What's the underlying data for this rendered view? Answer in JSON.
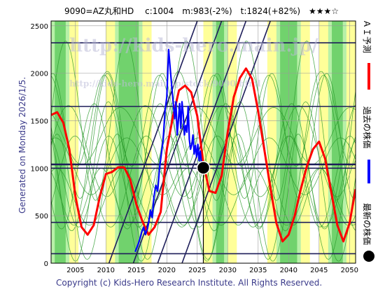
{
  "chart_data": {
    "type": "line",
    "title": "9090=AZ丸和HD　 c:1004　m:983(-2%)　t:1824(+82%)　★★★☆",
    "side_label": "Generated on Monday 2026/1/5.",
    "copyright": "Copyright (c) Kids-Hero Research Institute. All Rights Reserved.",
    "watermark": "http://kids-hero.main.jp/",
    "watermark2": "http://kids-hero.main.jp/stock/9090.html",
    "xlim": [
      2001,
      2051
    ],
    "ylim": [
      0,
      2550
    ],
    "x_ticks": [
      2005,
      2010,
      2015,
      2020,
      2025,
      2030,
      2035,
      2040,
      2045,
      2050
    ],
    "y_ticks": [
      0,
      500,
      1000,
      1500,
      2000,
      2500
    ],
    "horizontal_levels": [
      100,
      430,
      1000,
      1040,
      1650,
      2320
    ],
    "grid": true,
    "legend": {
      "ai_forecast": "ＡＩ予測",
      "past_price": "過去の株価",
      "latest_price": "最新の株価"
    },
    "colors": {
      "forecast": "#ff0000",
      "price": "#0000ff",
      "green_band": "#5ac85a",
      "light_green": "#b8f0a8",
      "yellow_band": "#ffff99",
      "level_line": "#1e1e5a",
      "frame": "#000000"
    },
    "latest_point": {
      "x": 2026.0,
      "y": 1004
    },
    "forecast_series": {
      "name": "ＡＩ予測",
      "x": [
        2001,
        2002,
        2003,
        2004,
        2005,
        2006,
        2007,
        2008,
        2009,
        2010,
        2011,
        2012,
        2013,
        2014,
        2015,
        2016,
        2017,
        2018,
        2019,
        2020,
        2021,
        2022,
        2023,
        2024,
        2025,
        2026,
        2027,
        2028,
        2029,
        2030,
        2031,
        2032,
        2033,
        2034,
        2035,
        2036,
        2037,
        2038,
        2039,
        2040,
        2041,
        2042,
        2043,
        2044,
        2045,
        2046,
        2047,
        2048,
        2049,
        2050,
        2051
      ],
      "y": [
        1560,
        1590,
        1480,
        1200,
        700,
        380,
        300,
        400,
        700,
        940,
        960,
        1010,
        1010,
        880,
        620,
        440,
        300,
        380,
        540,
        1200,
        1540,
        1820,
        1870,
        1800,
        1550,
        1050,
        760,
        740,
        920,
        1380,
        1750,
        1950,
        2050,
        1940,
        1600,
        1200,
        800,
        420,
        230,
        300,
        500,
        780,
        1020,
        1200,
        1280,
        1100,
        750,
        400,
        230,
        420,
        780
      ]
    },
    "price_series": {
      "name": "過去の株価",
      "x": [
        2014.8,
        2015.0,
        2015.3,
        2015.6,
        2015.9,
        2016.2,
        2016.5,
        2016.8,
        2017.0,
        2017.3,
        2017.6,
        2017.9,
        2018.2,
        2018.5,
        2018.8,
        2019.1,
        2019.4,
        2019.7,
        2020.0,
        2020.3,
        2020.6,
        2020.9,
        2021.1,
        2021.3,
        2021.5,
        2021.7,
        2021.9,
        2022.1,
        2022.3,
        2022.5,
        2022.7,
        2022.9,
        2023.1,
        2023.3,
        2023.5,
        2023.7,
        2023.9,
        2024.1,
        2024.3,
        2024.5,
        2024.7,
        2024.9,
        2025.1,
        2025.3,
        2025.5,
        2025.7,
        2026.0
      ],
      "y": [
        120,
        150,
        200,
        260,
        330,
        380,
        300,
        360,
        420,
        560,
        480,
        700,
        820,
        760,
        1000,
        1150,
        1300,
        1600,
        1750,
        2250,
        2020,
        1800,
        1650,
        1520,
        1700,
        1350,
        1500,
        1680,
        1420,
        1700,
        1560,
        1350,
        1450,
        1380,
        1650,
        1300,
        1200,
        1250,
        1350,
        1150,
        1240,
        1120,
        1250,
        1080,
        1180,
        1050,
        1004
      ]
    }
  }
}
